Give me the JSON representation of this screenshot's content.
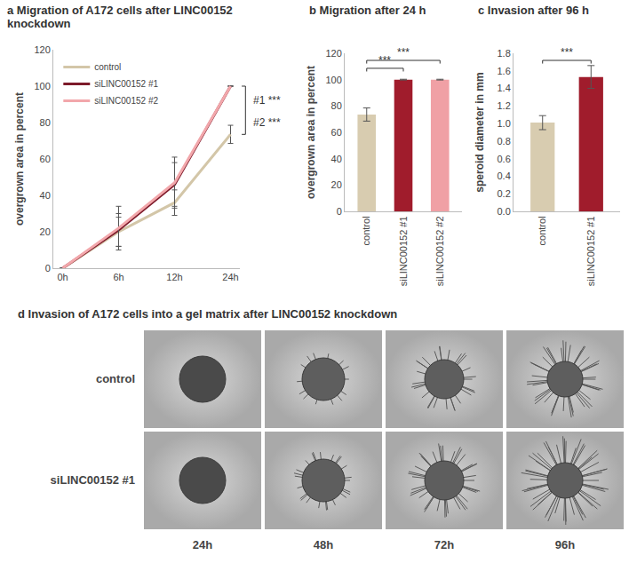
{
  "chart_data": [
    {
      "type": "line",
      "title": "a Migration of A172 cells after LINC00152 knockdown",
      "y_label": "overgrown area in percent",
      "categories": [
        "0h",
        "6h",
        "12h",
        "24h"
      ],
      "series": [
        {
          "name": "control",
          "color": "#d3c6a8",
          "values": [
            0,
            20,
            36,
            73.5
          ],
          "errors": [
            0,
            8,
            7,
            5
          ]
        },
        {
          "name": "siLINC00152 #1",
          "color": "#7d1a2a",
          "values": [
            0,
            21,
            46,
            100
          ],
          "errors": [
            0,
            9,
            12,
            0
          ]
        },
        {
          "name": "siLINC00152 #2",
          "color": "#f2a7ab",
          "values": [
            0,
            22,
            47,
            100
          ],
          "errors": [
            0,
            12,
            14,
            0
          ]
        }
      ],
      "ylim": [
        0,
        120
      ],
      "yticks": [
        0,
        20,
        40,
        60,
        80,
        100,
        120
      ],
      "grid": false,
      "legend": "upper left",
      "significance": [
        {
          "text": "#1 ***"
        },
        {
          "text": "#2 ***"
        }
      ]
    },
    {
      "type": "bar",
      "title": "b Migration after 24 h",
      "y_label": "overgrown area in percent",
      "categories": [
        "control",
        "siLINC00152 #1",
        "siLINC00152 #2"
      ],
      "values": [
        73.5,
        100,
        100
      ],
      "errors": [
        5,
        0.3,
        0.3
      ],
      "colors": [
        "#d8ccb0",
        "#a01c2c",
        "#f0a0a5"
      ],
      "ylim": [
        0,
        120
      ],
      "yticks": [
        0,
        20,
        40,
        60,
        80,
        100,
        120
      ],
      "grid": false,
      "significance": [
        {
          "pair": [
            "control",
            "siLINC00152 #1"
          ],
          "text": "***"
        },
        {
          "pair": [
            "control",
            "siLINC00152 #2"
          ],
          "text": "***"
        }
      ]
    },
    {
      "type": "bar",
      "title": "c Invasion after 96 h",
      "y_label": "speroid diameter in mm",
      "categories": [
        "control",
        "siLINC00152 #1"
      ],
      "values": [
        1.01,
        1.53
      ],
      "errors": [
        0.08,
        0.13
      ],
      "colors": [
        "#d8ccb0",
        "#a01c2c"
      ],
      "ylim": [
        0,
        1.8
      ],
      "yticks": [
        {
          "value": 0,
          "label": "0.0"
        },
        {
          "value": 0.2,
          "label": "0.2"
        },
        {
          "value": 0.4,
          "label": "0.4"
        },
        {
          "value": 0.6,
          "label": "0.6"
        },
        {
          "value": 0.8,
          "label": "0.8"
        },
        {
          "value": 1,
          "label": "1.0"
        },
        {
          "value": 1.2,
          "label": "1.2"
        },
        {
          "value": 1.4,
          "label": "1.4"
        },
        {
          "value": 1.6,
          "label": "1.6"
        },
        {
          "value": 1.8,
          "label": "1.8"
        }
      ],
      "grid": false,
      "significance": [
        {
          "pair": [
            "control",
            "siLINC00152 #1"
          ],
          "text": "***"
        }
      ]
    }
  ],
  "panel_d": {
    "title": "d Invasion of A172 cells into a gel matrix after LINC00152 knockdown",
    "rows": [
      "control",
      "siLINC00152 #1"
    ],
    "columns": [
      "24h",
      "48h",
      "72h",
      "96h"
    ]
  }
}
